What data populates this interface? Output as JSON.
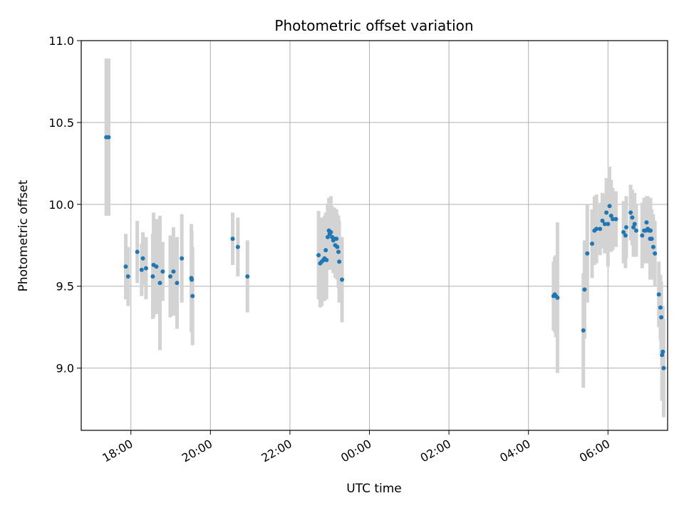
{
  "chart_data": {
    "type": "scatter",
    "title": "Photometric offset variation",
    "xlabel": "UTC time",
    "ylabel": "Photometric offset",
    "grid": true,
    "x_unit": "hours (UTC, continuing past midnight)",
    "xlim": [
      16.75,
      31.5
    ],
    "ylim": [
      8.62,
      11.0
    ],
    "x_ticks": [
      {
        "value": 18,
        "label": "18:00"
      },
      {
        "value": 20,
        "label": "20:00"
      },
      {
        "value": 22,
        "label": "22:00"
      },
      {
        "value": 24,
        "label": "00:00"
      },
      {
        "value": 26,
        "label": "02:00"
      },
      {
        "value": 28,
        "label": "04:00"
      },
      {
        "value": 30,
        "label": "06:00"
      }
    ],
    "y_ticks": [
      {
        "value": 9.0,
        "label": "9.0"
      },
      {
        "value": 9.5,
        "label": "9.5"
      },
      {
        "value": 10.0,
        "label": "10.0"
      },
      {
        "value": 10.5,
        "label": "10.5"
      },
      {
        "value": 11.0,
        "label": "11.0"
      }
    ],
    "colors": {
      "point": "#1f77b4",
      "errorbar": "#d3d3d3",
      "grid": "#b0b0b0"
    },
    "points": [
      [
        17.38,
        10.41,
        0.48
      ],
      [
        17.44,
        10.41,
        0.48
      ],
      [
        17.87,
        9.62,
        0.2
      ],
      [
        17.93,
        9.56,
        0.18
      ],
      [
        18.16,
        9.71,
        0.19
      ],
      [
        18.27,
        9.6,
        0.16
      ],
      [
        18.3,
        9.67,
        0.16
      ],
      [
        18.38,
        9.61,
        0.19
      ],
      [
        18.55,
        9.56,
        0.26
      ],
      [
        18.57,
        9.63,
        0.32
      ],
      [
        18.64,
        9.62,
        0.29
      ],
      [
        18.73,
        9.52,
        0.41
      ],
      [
        18.8,
        9.59,
        0.18
      ],
      [
        18.99,
        9.56,
        0.25
      ],
      [
        19.07,
        9.59,
        0.27
      ],
      [
        19.16,
        9.52,
        0.28
      ],
      [
        19.28,
        9.67,
        0.27
      ],
      [
        19.52,
        9.55,
        0.33
      ],
      [
        19.53,
        9.54,
        0.3
      ],
      [
        19.55,
        9.44,
        0.3
      ],
      [
        20.56,
        9.79,
        0.16
      ],
      [
        20.69,
        9.74,
        0.18
      ],
      [
        20.93,
        9.56,
        0.22
      ],
      [
        22.72,
        9.69,
        0.27
      ],
      [
        22.76,
        9.64,
        0.27
      ],
      [
        22.8,
        9.65,
        0.27
      ],
      [
        22.84,
        9.66,
        0.25
      ],
      [
        22.87,
        9.67,
        0.26
      ],
      [
        22.9,
        9.72,
        0.23
      ],
      [
        22.92,
        9.66,
        0.24
      ],
      [
        22.95,
        9.8,
        0.2
      ],
      [
        22.98,
        9.84,
        0.2
      ],
      [
        23.0,
        9.82,
        0.22
      ],
      [
        23.03,
        9.83,
        0.22
      ],
      [
        23.06,
        9.8,
        0.19
      ],
      [
        23.09,
        9.78,
        0.2
      ],
      [
        23.12,
        9.79,
        0.19
      ],
      [
        23.14,
        9.75,
        0.2
      ],
      [
        23.17,
        9.79,
        0.18
      ],
      [
        23.19,
        9.74,
        0.2
      ],
      [
        23.22,
        9.71,
        0.22
      ],
      [
        23.24,
        9.65,
        0.25
      ],
      [
        23.31,
        9.54,
        0.26
      ],
      [
        28.63,
        9.44,
        0.21
      ],
      [
        28.66,
        9.45,
        0.23
      ],
      [
        28.69,
        9.44,
        0.25
      ],
      [
        28.73,
        9.43,
        0.46
      ],
      [
        29.38,
        9.23,
        0.35
      ],
      [
        29.41,
        9.48,
        0.3
      ],
      [
        29.48,
        9.7,
        0.3
      ],
      [
        29.6,
        9.76,
        0.21
      ],
      [
        29.66,
        9.84,
        0.21
      ],
      [
        29.71,
        9.85,
        0.21
      ],
      [
        29.8,
        9.85,
        0.16
      ],
      [
        29.86,
        9.9,
        0.17
      ],
      [
        29.92,
        9.88,
        0.18
      ],
      [
        29.96,
        9.95,
        0.21
      ],
      [
        30.0,
        9.88,
        0.26
      ],
      [
        30.04,
        9.99,
        0.24
      ],
      [
        30.08,
        9.93,
        0.22
      ],
      [
        30.12,
        9.91,
        0.19
      ],
      [
        30.2,
        9.91,
        0.17
      ],
      [
        30.39,
        9.83,
        0.19
      ],
      [
        30.44,
        9.81,
        0.2
      ],
      [
        30.46,
        9.86,
        0.19
      ],
      [
        30.57,
        9.95,
        0.17
      ],
      [
        30.61,
        9.92,
        0.17
      ],
      [
        30.64,
        9.86,
        0.18
      ],
      [
        30.67,
        9.88,
        0.19
      ],
      [
        30.71,
        9.84,
        0.16
      ],
      [
        30.86,
        9.81,
        0.2
      ],
      [
        30.91,
        9.84,
        0.2
      ],
      [
        30.97,
        9.89,
        0.16
      ],
      [
        31.04,
        9.84,
        0.2
      ],
      [
        31.07,
        9.84,
        0.2
      ],
      [
        30.95,
        9.84,
        0.2
      ],
      [
        31.0,
        9.85,
        0.2
      ],
      [
        31.06,
        9.79,
        0.25
      ],
      [
        31.1,
        9.79,
        0.18
      ],
      [
        31.14,
        9.74,
        0.2
      ],
      [
        31.18,
        9.7,
        0.2
      ],
      [
        31.28,
        9.45,
        0.2
      ],
      [
        31.32,
        9.37,
        0.2
      ],
      [
        31.34,
        9.31,
        0.22
      ],
      [
        31.36,
        9.08,
        0.28
      ],
      [
        31.38,
        9.1,
        0.28
      ],
      [
        31.4,
        9.0,
        0.3
      ]
    ]
  }
}
